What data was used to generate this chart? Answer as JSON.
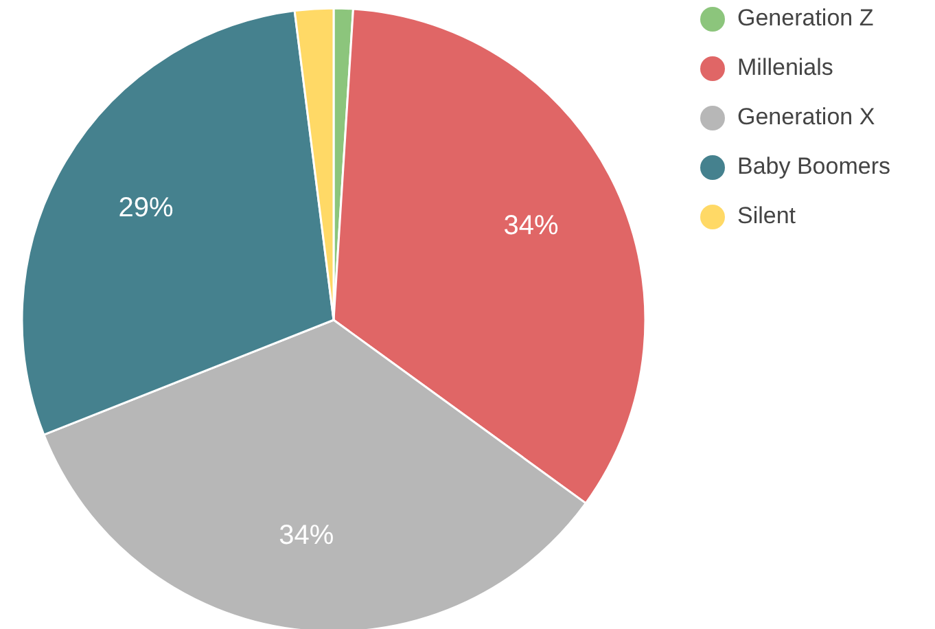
{
  "chart_data": {
    "type": "pie",
    "categories": [
      "Generation Z",
      "Millenials",
      "Generation X",
      "Baby Boomers",
      "Silent"
    ],
    "values": [
      1,
      34,
      34,
      29,
      2
    ],
    "colors": [
      "#8cc57c",
      "#e06666",
      "#b7b7b7",
      "#45818e",
      "#ffd966"
    ],
    "value_labels": [
      null,
      "34%",
      "34%",
      "29%",
      null
    ],
    "legend": "top right"
  }
}
